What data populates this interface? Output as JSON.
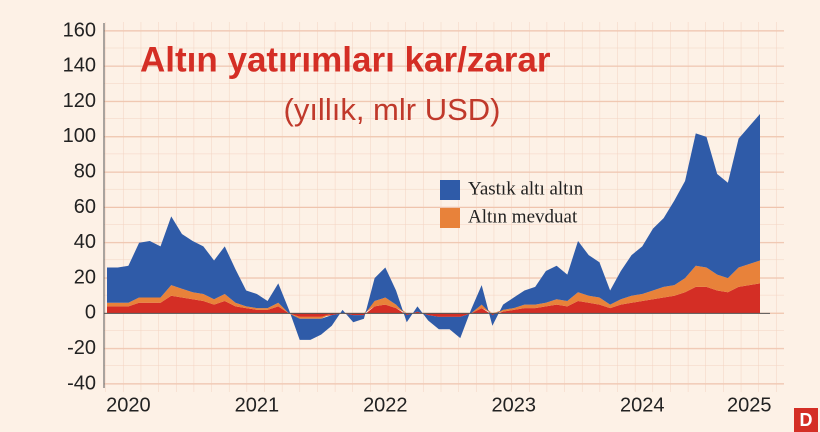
{
  "chart_data": {
    "type": "area",
    "title": "Altın yatırımları kar/zarar",
    "subtitle": "(yıllık, mlr USD)",
    "logo": "D",
    "categories": [
      null,
      null,
      "2020",
      null,
      null,
      null,
      null,
      null,
      null,
      null,
      null,
      null,
      null,
      null,
      "2021",
      null,
      null,
      null,
      null,
      null,
      null,
      null,
      null,
      null,
      null,
      null,
      "2022",
      null,
      null,
      null,
      null,
      null,
      null,
      null,
      null,
      null,
      null,
      null,
      "2023",
      null,
      null,
      null,
      null,
      null,
      null,
      null,
      null,
      null,
      null,
      null,
      "2024",
      null,
      null,
      null,
      null,
      null,
      null,
      null,
      null,
      null,
      "2025",
      null
    ],
    "series": [
      {
        "color": "#d42e25",
        "values": [
          4,
          4,
          4,
          6,
          6,
          6,
          10,
          9,
          8,
          7,
          5,
          7,
          4,
          3,
          2,
          2,
          4,
          0,
          -2,
          -2,
          -2,
          -1,
          0,
          -1,
          -1,
          4,
          5,
          3,
          -1,
          1,
          -1,
          -2,
          -2,
          -2,
          0,
          3,
          -1,
          1,
          2,
          3,
          3,
          4,
          5,
          4,
          7,
          6,
          5,
          3,
          5,
          6,
          7,
          8,
          9,
          10,
          12,
          15,
          15,
          13,
          12,
          15,
          16,
          17
        ]
      },
      {
        "name": "Altın mevduat",
        "color": "#e8823a",
        "values": [
          2,
          2,
          2,
          3,
          3,
          3,
          6,
          5,
          4,
          4,
          3,
          4,
          2,
          1,
          1,
          1,
          2,
          0,
          -1,
          -1,
          -1,
          0,
          0,
          0,
          0,
          3,
          4,
          2,
          0,
          0,
          0,
          0,
          0,
          0,
          0,
          2,
          0,
          1,
          1,
          2,
          2,
          2,
          3,
          3,
          5,
          4,
          4,
          2,
          3,
          4,
          4,
          5,
          6,
          6,
          8,
          12,
          11,
          9,
          8,
          11,
          12,
          13
        ]
      },
      {
        "name": "Yastık altı altın",
        "color": "#2f5ba8",
        "values": [
          20,
          20,
          21,
          31,
          32,
          29,
          39,
          31,
          29,
          27,
          22,
          27,
          19,
          9,
          8,
          4,
          11,
          2,
          -12,
          -12,
          -9,
          -6,
          2,
          -4,
          -2,
          13,
          17,
          8,
          -4,
          3,
          -3,
          -7,
          -7,
          -12,
          2,
          11,
          -6,
          3,
          6,
          8,
          10,
          18,
          19,
          15,
          29,
          23,
          20,
          8,
          16,
          23,
          27,
          35,
          39,
          48,
          55,
          75,
          74,
          57,
          54,
          73,
          78,
          83
        ]
      }
    ],
    "ylim": [
      -40,
      160
    ],
    "yticks": [
      -40,
      -20,
      0,
      20,
      40,
      60,
      80,
      100,
      120,
      140,
      160
    ],
    "grid": true
  }
}
